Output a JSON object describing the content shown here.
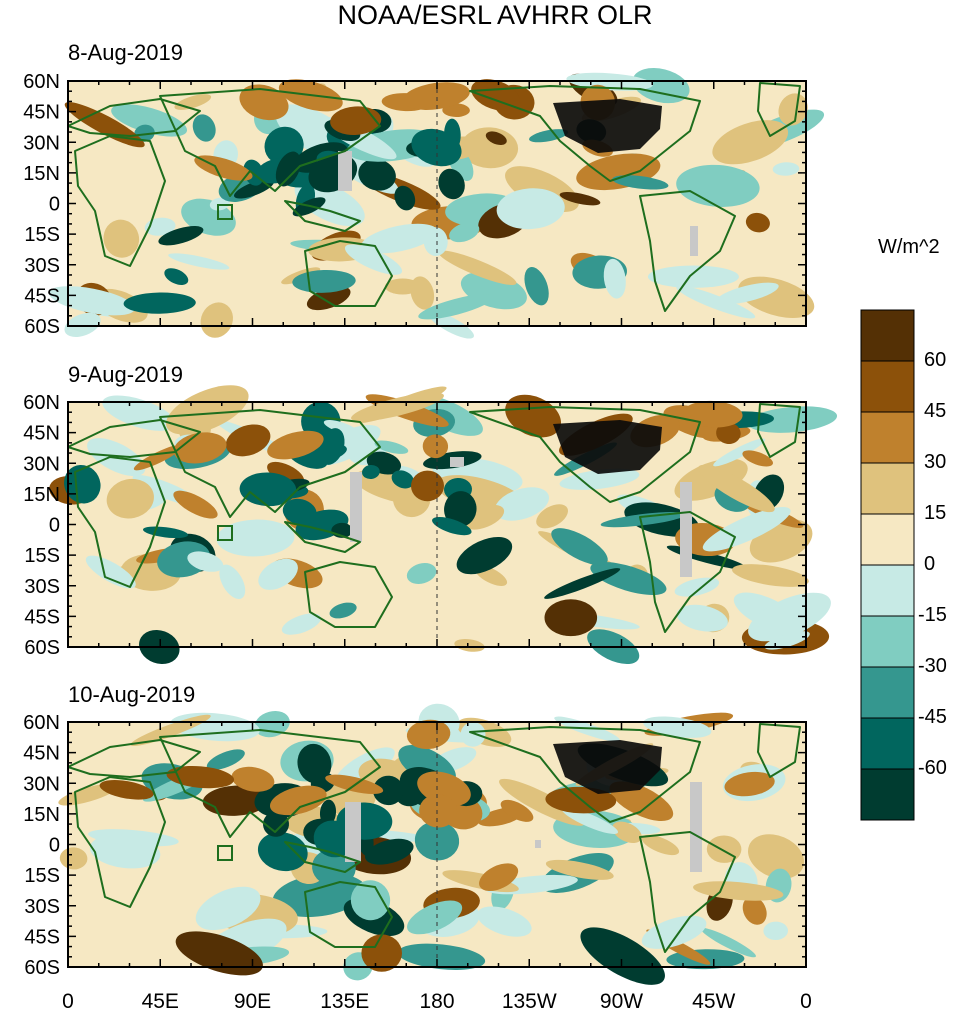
{
  "title": "NOAA/ESRL AVHRR OLR",
  "colorbar": {
    "unit": "W/m^2",
    "labels": [
      "60",
      "45",
      "30",
      "15",
      "0",
      "-15",
      "-30",
      "-45",
      "-60"
    ],
    "colors": [
      "#543005",
      "#8c510a",
      "#bf812d",
      "#dfc27d",
      "#f6e8c3",
      "#c7eae5",
      "#80cdc1",
      "#35978f",
      "#01665e",
      "#003c30"
    ]
  },
  "panels": [
    {
      "date": "8-Aug-2019"
    },
    {
      "date": "9-Aug-2019"
    },
    {
      "date": "10-Aug-2019"
    }
  ],
  "lat_labels": [
    "60N",
    "45N",
    "30N",
    "15N",
    "0",
    "15S",
    "30S",
    "45S",
    "60S"
  ],
  "lon_labels": [
    "0",
    "45E",
    "90E",
    "135E",
    "180",
    "135W",
    "90W",
    "45W",
    "0"
  ],
  "map_colors": {
    "coastline": "#1e6e1e",
    "missing": "#c8c8c8",
    "land_outline": "#0b0b0b"
  }
}
